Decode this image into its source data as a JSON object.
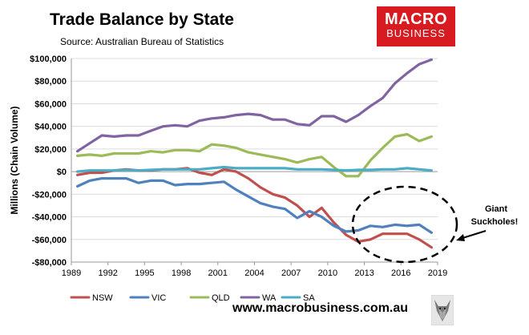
{
  "chart_data": {
    "type": "line",
    "title": "Trade Balance by State",
    "subtitle": "Source: Australian Bureau of Statistics",
    "xlabel": "",
    "ylabel": "Millions (Chain Volume)",
    "xlim": [
      1989,
      2019
    ],
    "ylim": [
      -80000,
      100000
    ],
    "xticks": [
      1989,
      1992,
      1995,
      1998,
      2001,
      2004,
      2007,
      2010,
      2013,
      2016,
      2019
    ],
    "yticks": [
      -80000,
      -60000,
      -40000,
      -20000,
      0,
      20000,
      40000,
      60000,
      80000,
      100000
    ],
    "ytick_labels": [
      "-$80,000",
      "-$60,000",
      "-$40,000",
      "-$20,000",
      "$0",
      "$20,000",
      "$40,000",
      "$60,000",
      "$80,000",
      "$100,000"
    ],
    "x": [
      1989.5,
      1990.5,
      1991.5,
      1992.5,
      1993.5,
      1994.5,
      1995.5,
      1996.5,
      1997.5,
      1998.5,
      1999.5,
      2000.5,
      2001.5,
      2002.5,
      2003.5,
      2004.5,
      2005.5,
      2006.5,
      2007.5,
      2008.5,
      2009.5,
      2010.5,
      2011.5,
      2012.5,
      2013.5,
      2014.5,
      2015.5,
      2016.5,
      2017.5,
      2018.5
    ],
    "series": [
      {
        "name": "NSW",
        "color": "#c0504d",
        "values": [
          -3000,
          -1000,
          -1000,
          1000,
          2000,
          1000,
          1000,
          2000,
          2000,
          3000,
          -1000,
          -3000,
          2000,
          0,
          -6000,
          -14000,
          -20000,
          -23000,
          -30000,
          -40000,
          -32000,
          -45000,
          -56000,
          -62000,
          -60000,
          -55000,
          -55000,
          -55000,
          -60000,
          -67000
        ]
      },
      {
        "name": "VIC",
        "color": "#4f81bd",
        "values": [
          -13000,
          -8000,
          -6000,
          -6000,
          -6000,
          -10000,
          -8000,
          -8000,
          -12000,
          -11000,
          -11000,
          -10000,
          -9000,
          -16000,
          -22000,
          -28000,
          -31000,
          -33000,
          -41000,
          -35000,
          -40000,
          -48000,
          -53000,
          -52000,
          -48000,
          -49000,
          -47000,
          -48000,
          -47000,
          -54000
        ]
      },
      {
        "name": "QLD",
        "color": "#9bbb59",
        "values": [
          14000,
          15000,
          14000,
          16000,
          16000,
          16000,
          18000,
          17000,
          19000,
          19000,
          18000,
          24000,
          23000,
          21000,
          17000,
          15000,
          13000,
          11000,
          8000,
          11000,
          13000,
          4000,
          -4000,
          -4000,
          10000,
          21000,
          31000,
          33000,
          27000,
          31000
        ]
      },
      {
        "name": "WA",
        "color": "#8064a2",
        "values": [
          18000,
          25000,
          32000,
          31000,
          32000,
          32000,
          36000,
          40000,
          41000,
          40000,
          45000,
          47000,
          48000,
          50000,
          51000,
          50000,
          46000,
          46000,
          42000,
          41000,
          49000,
          49000,
          44000,
          50000,
          58000,
          65000,
          78000,
          87000,
          95000,
          99000
        ]
      },
      {
        "name": "SA",
        "color": "#4bacc6",
        "values": [
          0,
          1000,
          1000,
          1000,
          1500,
          1000,
          1500,
          2000,
          2000,
          2000,
          2000,
          3000,
          4000,
          3000,
          3000,
          3000,
          3000,
          3000,
          2000,
          2000,
          2000,
          1500,
          1000,
          1500,
          1500,
          2000,
          2000,
          3000,
          2000,
          1000
        ]
      }
    ],
    "annotations": [
      {
        "text_line1": "Giant",
        "text_line2": "Suckholes!"
      }
    ],
    "legend_position": "bottom"
  },
  "brand": {
    "logo_line1": "MACRO",
    "logo_line2": "BUSINESS",
    "url": "www.macrobusiness.com.au",
    "accent": "#d81b21"
  }
}
